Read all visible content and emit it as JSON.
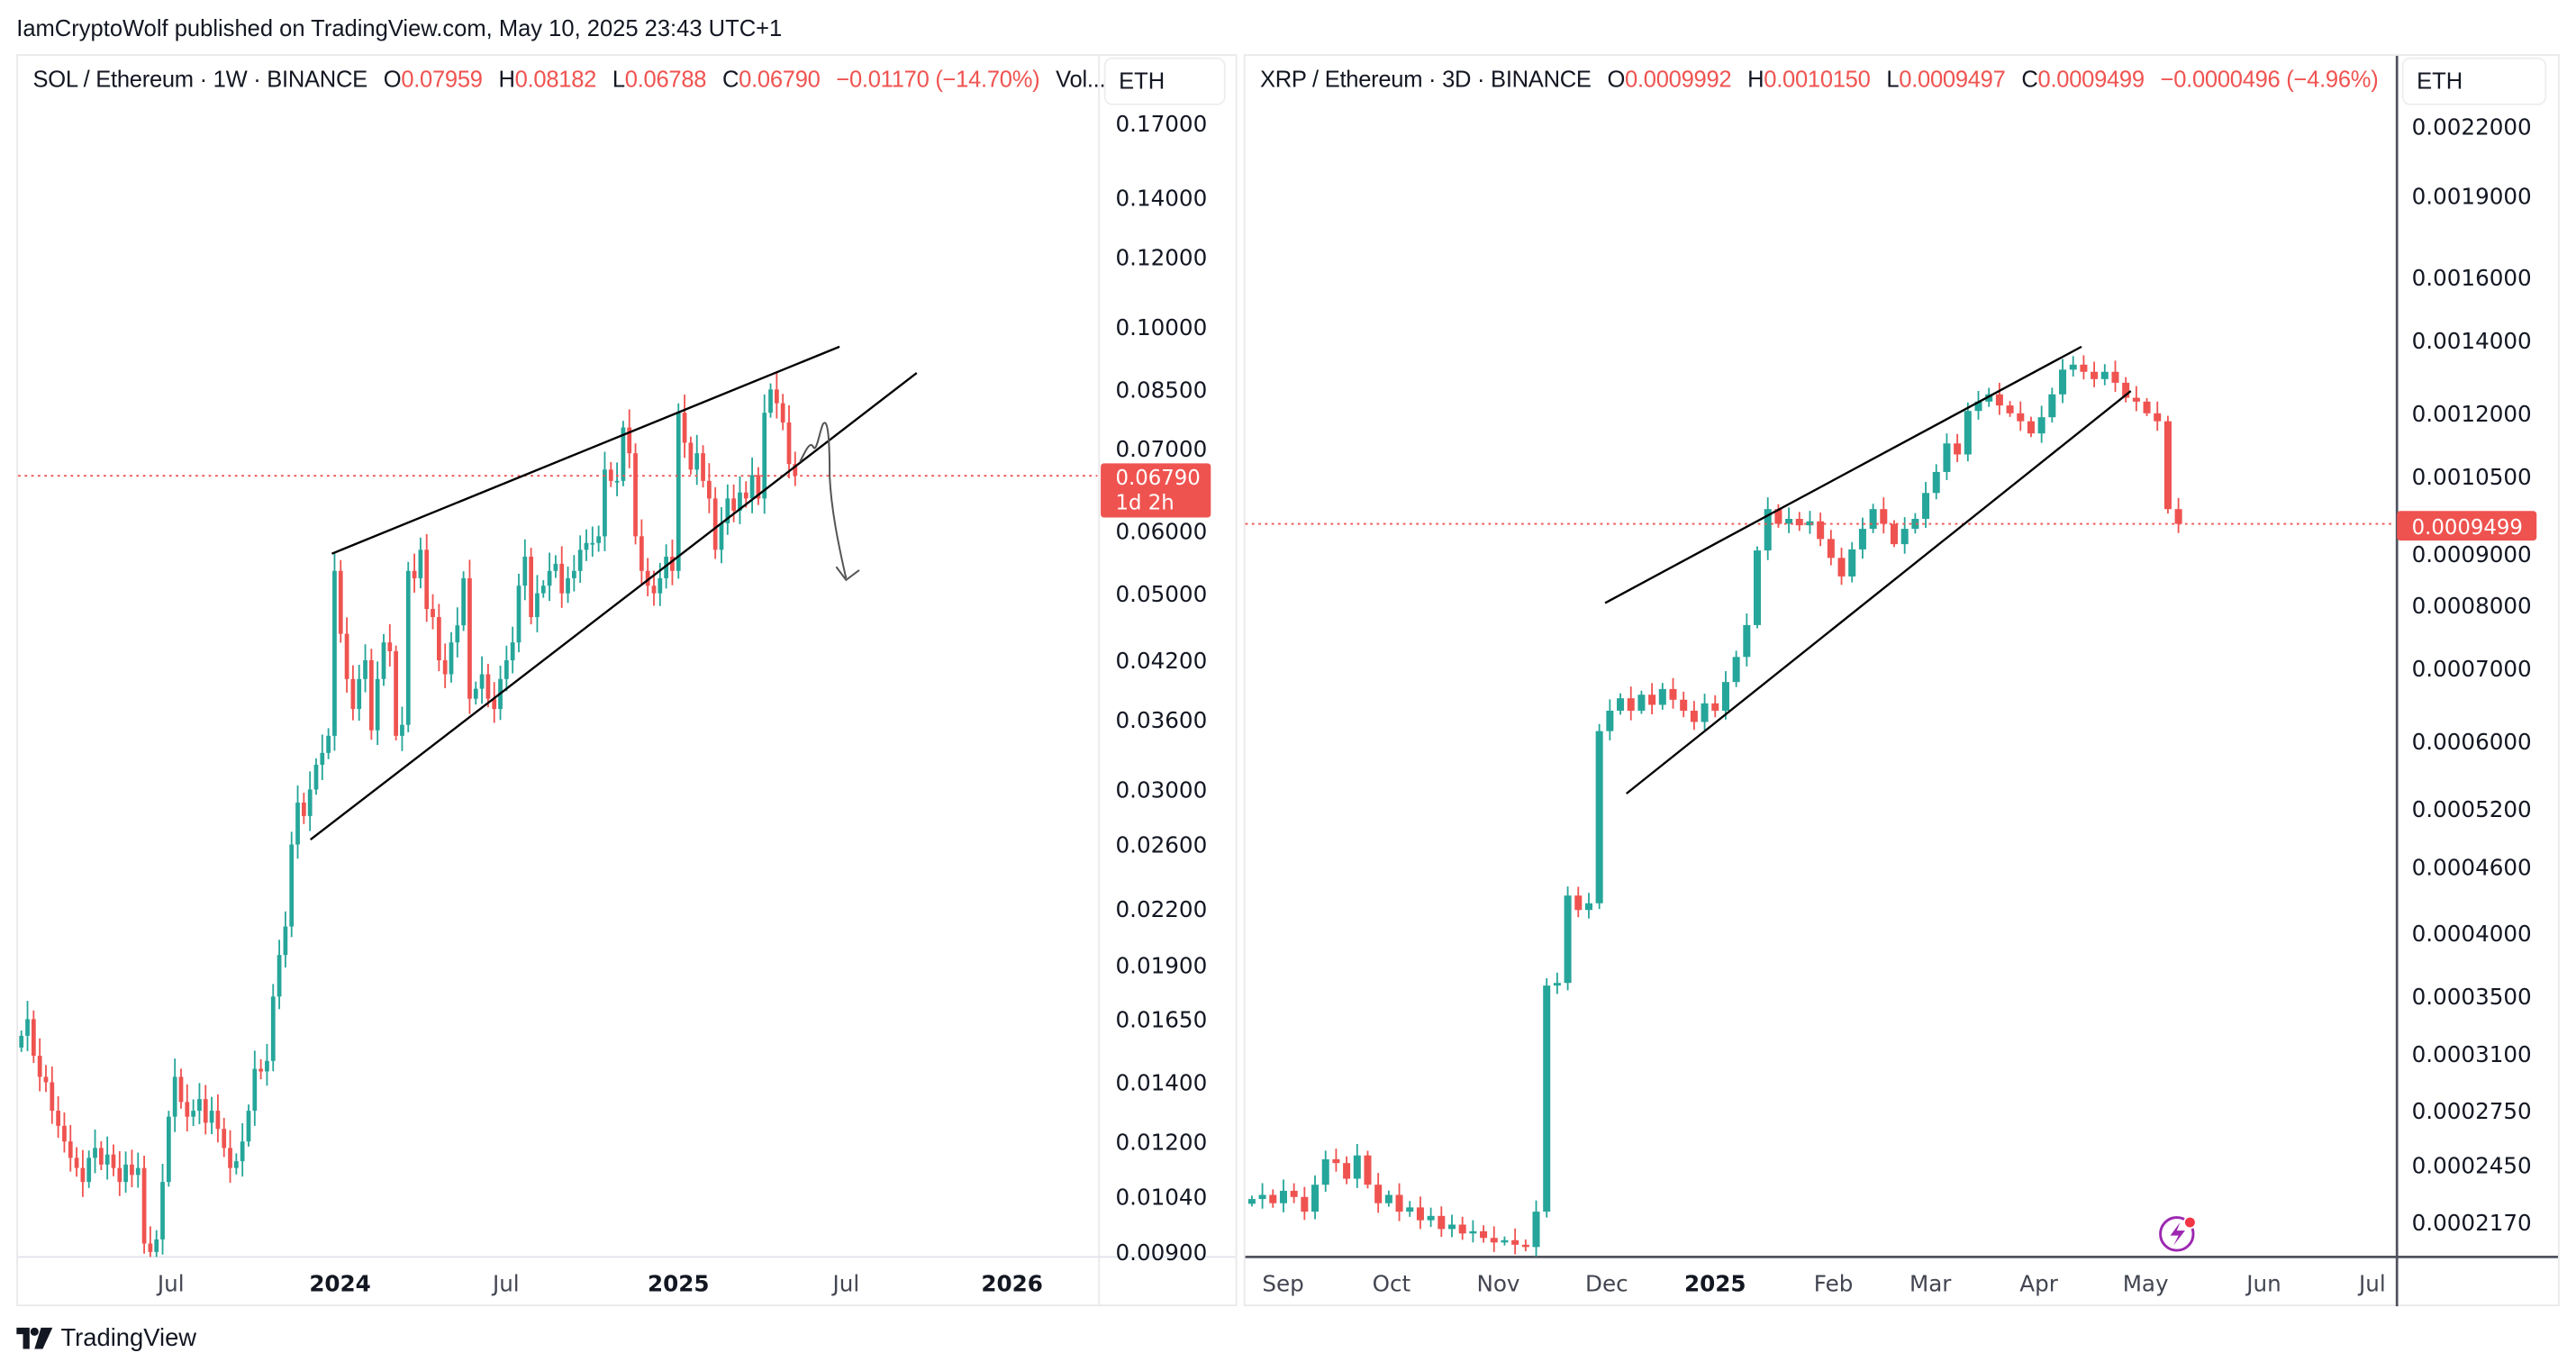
{
  "header": {
    "published": "IamCryptoWolf published on TradingView.com, May 10, 2025 23:43 UTC+1"
  },
  "footer": {
    "brand": "TradingView",
    "logo_icon": "tradingview-logo-icon"
  },
  "colors": {
    "up": "#26a69a",
    "down": "#ef5350",
    "price_line": "#ef5350",
    "drawing": "#000000",
    "sketch": "#555555",
    "alert_icon": "#9c27b0"
  },
  "left_chart": {
    "symbol": "SOL / Ethereum · 1W · BINANCE",
    "o_label": "O",
    "open": "0.07959",
    "h_label": "H",
    "high": "0.08182",
    "l_label": "L",
    "low": "0.06788",
    "c_label": "C",
    "close": "0.06790",
    "change": "−0.01170 (−14.70%)",
    "vol": "Vol...",
    "currency": "ETH",
    "last_price_label": "0.06790",
    "countdown": "1d 2h",
    "time_labels": [
      {
        "text": "Jul",
        "bold": false
      },
      {
        "text": "2024",
        "bold": true
      },
      {
        "text": "Jul",
        "bold": false
      },
      {
        "text": "2025",
        "bold": true
      },
      {
        "text": "Jul",
        "bold": false
      },
      {
        "text": "2026",
        "bold": true
      }
    ]
  },
  "right_chart": {
    "symbol": "XRP / Ethereum · 3D · BINANCE",
    "o_label": "O",
    "open": "0.0009992",
    "h_label": "H",
    "high": "0.0010150",
    "l_label": "L",
    "low": "0.0009497",
    "c_label": "C",
    "close": "0.0009499",
    "change": "−0.0000496 (−4.96%)",
    "currency": "ETH",
    "last_price_label": "0.0009499",
    "alert_icon": "lightning-alert-icon",
    "time_labels": [
      {
        "text": "Sep",
        "bold": false
      },
      {
        "text": "Oct",
        "bold": false
      },
      {
        "text": "Nov",
        "bold": false
      },
      {
        "text": "Dec",
        "bold": false
      },
      {
        "text": "2025",
        "bold": true
      },
      {
        "text": "Feb",
        "bold": false
      },
      {
        "text": "Mar",
        "bold": false
      },
      {
        "text": "Apr",
        "bold": false
      },
      {
        "text": "May",
        "bold": false
      },
      {
        "text": "Jun",
        "bold": false
      },
      {
        "text": "Jul",
        "bold": false
      }
    ]
  },
  "chart_data": [
    {
      "type": "candlestick",
      "title": "SOL / Ethereum · 1W · BINANCE",
      "scale": "log",
      "interval": "1W",
      "ylim": [
        0.009,
        0.17
      ],
      "yticks": [
        "0.17000",
        "0.14000",
        "0.12000",
        "0.10000",
        "0.08500",
        "0.07000",
        "0.06000",
        "0.05000",
        "0.04200",
        "0.03600",
        "0.03000",
        "0.02600",
        "0.02200",
        "0.01900",
        "0.01650",
        "0.01400",
        "0.01200",
        "0.01040",
        "0.00900"
      ],
      "last_price": 0.0679,
      "closes": [
        0.0158,
        0.0165,
        0.015,
        0.0142,
        0.014,
        0.013,
        0.0125,
        0.012,
        0.0115,
        0.0112,
        0.0108,
        0.0115,
        0.0118,
        0.0113,
        0.0116,
        0.0112,
        0.0108,
        0.0113,
        0.011,
        0.0112,
        0.0092,
        0.009,
        0.0093,
        0.0108,
        0.0128,
        0.0142,
        0.0133,
        0.0128,
        0.013,
        0.0134,
        0.0126,
        0.013,
        0.0124,
        0.0118,
        0.0112,
        0.0114,
        0.012,
        0.013,
        0.0145,
        0.0144,
        0.0148,
        0.0175,
        0.0195,
        0.021,
        0.026,
        0.029,
        0.028,
        0.03,
        0.032,
        0.033,
        0.0345,
        0.053,
        0.045,
        0.04,
        0.037,
        0.04,
        0.042,
        0.035,
        0.04,
        0.044,
        0.043,
        0.0345,
        0.0355,
        0.053,
        0.052,
        0.056,
        0.048,
        0.047,
        0.042,
        0.0405,
        0.044,
        0.046,
        0.052,
        0.038,
        0.039,
        0.0405,
        0.038,
        0.037,
        0.04,
        0.042,
        0.044,
        0.051,
        0.055,
        0.047,
        0.05,
        0.051,
        0.053,
        0.054,
        0.05,
        0.052,
        0.053,
        0.056,
        0.057,
        0.057,
        0.058,
        0.069,
        0.067,
        0.067,
        0.077,
        0.072,
        0.058,
        0.053,
        0.051,
        0.05,
        0.052,
        0.055,
        0.053,
        0.08,
        0.074,
        0.069,
        0.072,
        0.067,
        0.064,
        0.056,
        0.06,
        0.064,
        0.062,
        0.065,
        0.064,
        0.068,
        0.064,
        0.08,
        0.085,
        0.082,
        0.078,
        0.07,
        0.0679
      ]
    },
    {
      "type": "candlestick",
      "title": "XRP / Ethereum · 3D · BINANCE",
      "scale": "log",
      "interval": "3D",
      "ylim": [
        0.000217,
        0.0022
      ],
      "yticks": [
        "0.0022000",
        "0.0019000",
        "0.0016000",
        "0.0014000",
        "0.0012000",
        "0.0010500",
        "0.0009000",
        "0.0008000",
        "0.0007000",
        "0.0006000",
        "0.0005200",
        "0.0004600",
        "0.0004000",
        "0.0003500",
        "0.0003100",
        "0.0002750",
        "0.0002450",
        "0.0002170"
      ],
      "last_price": 0.0009499,
      "closes": [
        0.000228,
        0.00023,
        0.000226,
        0.000232,
        0.000229,
        0.000222,
        0.000235,
        0.000248,
        0.000246,
        0.000238,
        0.00025,
        0.000235,
        0.000226,
        0.00023,
        0.000222,
        0.000224,
        0.000218,
        0.00022,
        0.000214,
        0.000216,
        0.000212,
        0.000213,
        0.00021,
        0.000208,
        0.000209,
        0.000207,
        0.000206,
        0.000222,
        0.000358,
        0.00036,
        0.000433,
        0.00042,
        0.000426,
        0.000613,
        0.00064,
        0.000657,
        0.00064,
        0.000662,
        0.000648,
        0.00067,
        0.000655,
        0.00064,
        0.000625,
        0.00065,
        0.00064,
        0.00068,
        0.000717,
        0.000767,
        0.000898,
        0.00098,
        0.00095,
        0.00096,
        0.000947,
        0.000955,
        0.00092,
        0.000884,
        0.00085,
        0.0009,
        0.00094,
        0.00098,
        0.00095,
        0.00091,
        0.00094,
        0.00096,
        0.001014,
        0.00106,
        0.001126,
        0.0011,
        0.001206,
        0.00123,
        0.001249,
        0.00122,
        0.0012,
        0.00118,
        0.00115,
        0.00119,
        0.001249,
        0.001316,
        0.00133,
        0.00131,
        0.00129,
        0.00131,
        0.00128,
        0.00124,
        0.00123,
        0.0012,
        0.00118,
        0.00098,
        0.0009499
      ]
    }
  ]
}
